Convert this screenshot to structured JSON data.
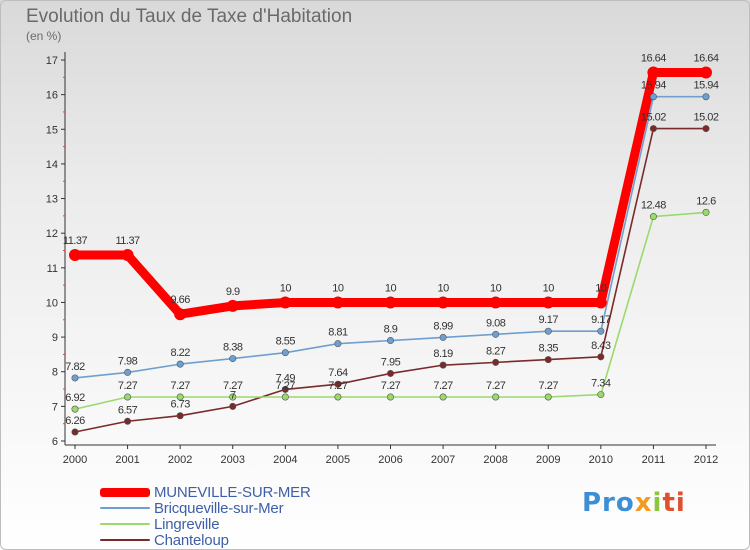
{
  "title": "Evolution du Taux de Taxe d'Habitation",
  "subtitle": "(en %)",
  "logo": {
    "p1": "Pro",
    "p2": "x",
    "p3": "i",
    "p4": "ti"
  },
  "chart_data": {
    "type": "line",
    "title": "Evolution du Taux de Taxe d'Habitation",
    "ylabel": "(en %)",
    "ylim": [
      6,
      17
    ],
    "yticks": [
      "6",
      "7",
      "8",
      "9",
      "10",
      "11",
      "12",
      "13",
      "14",
      "15",
      "16",
      "17"
    ],
    "categories": [
      "2000",
      "2001",
      "2002",
      "2003",
      "2004",
      "2005",
      "2006",
      "2007",
      "2008",
      "2009",
      "2010",
      "2011",
      "2012"
    ],
    "grid": false,
    "legend_position": "bottom-left",
    "series": [
      {
        "name": "MUNEVILLE-SUR-MER",
        "color": "#ff0000",
        "values": [
          11.37,
          11.37,
          9.66,
          9.9,
          10,
          10,
          10,
          10,
          10,
          10,
          10,
          16.64,
          16.64
        ],
        "labels": [
          "11.37",
          "11.37",
          "9.66",
          "9.9",
          "10",
          "10",
          "10",
          "10",
          "10",
          "10",
          "10",
          "16.64",
          "16.64"
        ]
      },
      {
        "name": "Bricqueville-sur-Mer",
        "color": "#6f9fd0",
        "values": [
          7.82,
          7.98,
          8.22,
          8.38,
          8.55,
          8.81,
          8.9,
          8.99,
          9.08,
          9.17,
          9.17,
          15.94,
          15.94
        ],
        "labels": [
          "7.82",
          "7.98",
          "8.22",
          "8.38",
          "8.55",
          "8.81",
          "8.9",
          "8.99",
          "9.08",
          "9.17",
          "9.17",
          "15.94",
          "15.94"
        ]
      },
      {
        "name": "Lingreville",
        "color": "#9ad96c",
        "values": [
          6.92,
          7.27,
          7.27,
          7.27,
          7.27,
          7.27,
          7.27,
          7.27,
          7.27,
          7.27,
          7.34,
          12.48,
          12.6
        ],
        "labels": [
          "6.92",
          "7.27",
          "7.27",
          "7.27",
          "7.27",
          "7.27",
          "7.27",
          "7.27",
          "7.27",
          "7.27",
          "7.34",
          "12.48",
          "12.6"
        ]
      },
      {
        "name": "Chanteloup",
        "color": "#7a2a2a",
        "values": [
          6.26,
          6.57,
          6.73,
          7,
          7.49,
          7.64,
          7.95,
          8.19,
          8.27,
          8.35,
          8.43,
          15.02,
          15.02
        ],
        "labels": [
          "6.26",
          "6.57",
          "6.73",
          "7",
          "7.49",
          "7.64",
          "7.95",
          "8.19",
          "8.27",
          "8.35",
          "8.43",
          "15.02",
          "15.02"
        ]
      }
    ]
  }
}
